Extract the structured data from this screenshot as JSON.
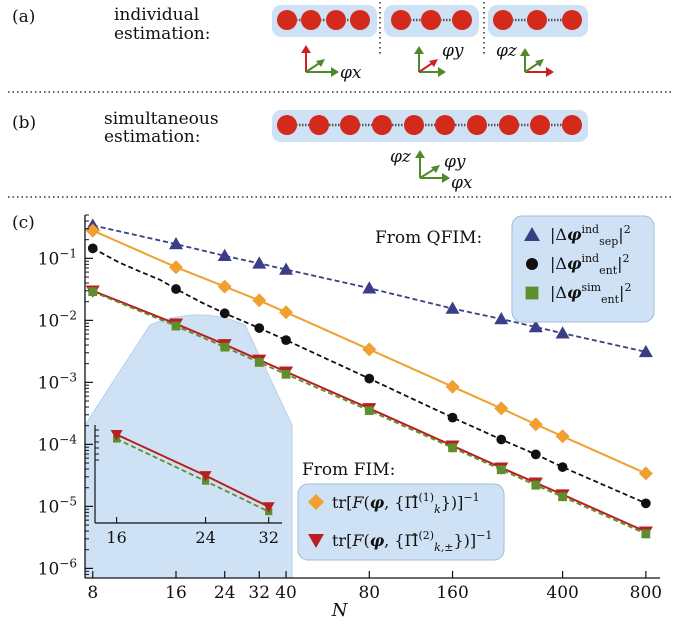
{
  "panels": {
    "a": {
      "tag": "(a)",
      "label_line1": "individual",
      "label_line2": "estimation:",
      "groups": [
        {
          "sites": 4,
          "axis_label": "φx"
        },
        {
          "sites": 3,
          "axis_label": "φy"
        },
        {
          "sites": 3,
          "axis_label": "φz"
        }
      ]
    },
    "b": {
      "tag": "(b)",
      "label_line1": "simultaneous",
      "label_line2": "estimation:",
      "sites": 10,
      "axis_labels": [
        "φz",
        "φy",
        "φx"
      ]
    },
    "c": {
      "tag": "(c)"
    }
  },
  "colors": {
    "ion": "#d42a1c",
    "panel_fill": "#cfe1f4",
    "axis_red": "#cc2222",
    "axis_green": "#4e8a2a",
    "sep_ind": "#3a3f85",
    "ent_ind": "#111111",
    "ent_sim": "#5e8f2c",
    "fim1": "#f0a030",
    "fim2": "#b82020"
  },
  "chart_data": {
    "type": "line",
    "xlabel": "N",
    "ylabel": "",
    "xscale": "log",
    "yscale": "log",
    "xlim": [
      7.5,
      900
    ],
    "ylim": [
      7e-07,
      0.5
    ],
    "xticks": [
      8,
      16,
      24,
      32,
      40,
      80,
      160,
      400,
      800
    ],
    "yticks": [
      {
        "value": 0.1,
        "label": "10^{-1}"
      },
      {
        "value": 0.01,
        "label": "10^{-2}"
      },
      {
        "value": 0.001,
        "label": "10^{-3}"
      },
      {
        "value": 0.0001,
        "label": "10^{-4}"
      },
      {
        "value": 1e-05,
        "label": "10^{-5}"
      },
      {
        "value": 1e-06,
        "label": "10^{-6}"
      }
    ],
    "legend_qfim": {
      "title": "From QFIM:",
      "placement": "top-right",
      "entries": [
        "|Δφ_sep^ind|²",
        "|Δφ_ent^ind|²",
        "|Δφ_ent^sim|²"
      ]
    },
    "legend_fim": {
      "title": "From FIM:",
      "placement": "bottom-right",
      "entries": [
        "tr[F(φ, {Π̂_k^(1)})^-1]",
        "tr[F(φ, {Π̂_{k,±}^(2)})^-1]"
      ]
    },
    "series": [
      {
        "key": "sep_ind",
        "style": "dashed",
        "marker": "triangle",
        "x": [
          8,
          16,
          24,
          32,
          40,
          80,
          160,
          240,
          320,
          400,
          800
        ],
        "y": [
          0.34,
          0.17,
          0.11,
          0.083,
          0.066,
          0.033,
          0.0155,
          0.0105,
          0.0078,
          0.0062,
          0.0031
        ]
      },
      {
        "key": "ent_ind",
        "style": "dashed",
        "marker": "circle",
        "x": [
          8,
          10,
          12,
          14,
          16,
          20,
          24,
          32,
          40,
          80,
          160,
          240,
          320,
          400,
          800
        ],
        "y": [
          0.145,
          0.085,
          0.06,
          0.045,
          0.032,
          0.019,
          0.013,
          0.0075,
          0.0048,
          0.00115,
          0.00027,
          0.00012,
          6.9e-05,
          4.3e-05,
          1.12e-05
        ]
      },
      {
        "key": "ent_sim",
        "style": "dashed",
        "marker": "square",
        "x": [
          8,
          16,
          24,
          32,
          40,
          80,
          160,
          240,
          320,
          400,
          800
        ],
        "y": [
          0.029,
          0.0081,
          0.0037,
          0.0021,
          0.00135,
          0.00035,
          8.8e-05,
          3.9e-05,
          2.2e-05,
          1.43e-05,
          3.6e-06
        ]
      },
      {
        "key": "fim1",
        "style": "solid",
        "marker": "diamond",
        "x": [
          8,
          16,
          24,
          32,
          40,
          80,
          160,
          240,
          320,
          400,
          800
        ],
        "y": [
          0.28,
          0.072,
          0.035,
          0.021,
          0.0135,
          0.0034,
          0.00085,
          0.00038,
          0.00021,
          0.000135,
          3.4e-05
        ]
      },
      {
        "key": "fim2",
        "style": "solid",
        "marker": "triangle-down",
        "x": [
          8,
          16,
          24,
          32,
          40,
          80,
          160,
          240,
          320,
          400,
          800
        ],
        "y": [
          0.03,
          0.0088,
          0.0041,
          0.0023,
          0.00148,
          0.00038,
          9.5e-05,
          4.2e-05,
          2.4e-05,
          1.55e-05,
          3.9e-06
        ]
      }
    ],
    "inset": {
      "xticks": [
        16,
        24,
        32
      ],
      "xlim": [
        14.5,
        34
      ],
      "series_keys": [
        "ent_sim",
        "fim2"
      ]
    }
  }
}
